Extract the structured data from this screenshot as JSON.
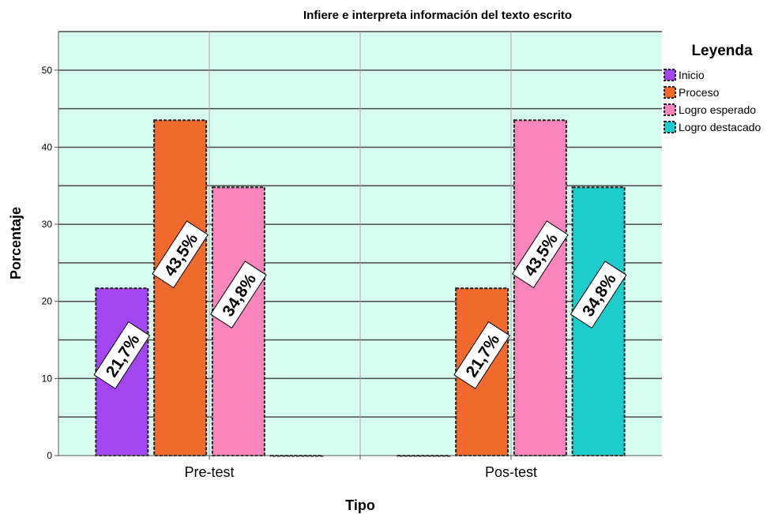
{
  "chart_data": {
    "type": "bar",
    "title": "Infiere e interpreta información del texto escrito",
    "xlabel": "Tipo",
    "ylabel": "Porcentaje",
    "ylim": [
      0,
      55
    ],
    "yticks": [
      0,
      10,
      20,
      30,
      40,
      50
    ],
    "grid": true,
    "legend_title": "Leyenda",
    "legend_position": "top-right",
    "categories": [
      "Pre-test",
      "Pos-test"
    ],
    "series": [
      {
        "name": "Inicio",
        "color": "#a346f0",
        "values": [
          21.7,
          0
        ],
        "labels": [
          "21,7%",
          ""
        ]
      },
      {
        "name": "Proceso",
        "color": "#f0692d",
        "values": [
          43.5,
          21.7
        ],
        "labels": [
          "43,5%",
          "21,7%"
        ]
      },
      {
        "name": "Logro esperado",
        "color": "#f885bb",
        "values": [
          34.8,
          43.5
        ],
        "labels": [
          "34,8%",
          "43,5%"
        ]
      },
      {
        "name": "Logro destacado",
        "color": "#1ecccc",
        "values": [
          0,
          34.8
        ],
        "labels": [
          "",
          "34,8%"
        ]
      }
    ],
    "plot_background": "#d7fcf0"
  }
}
